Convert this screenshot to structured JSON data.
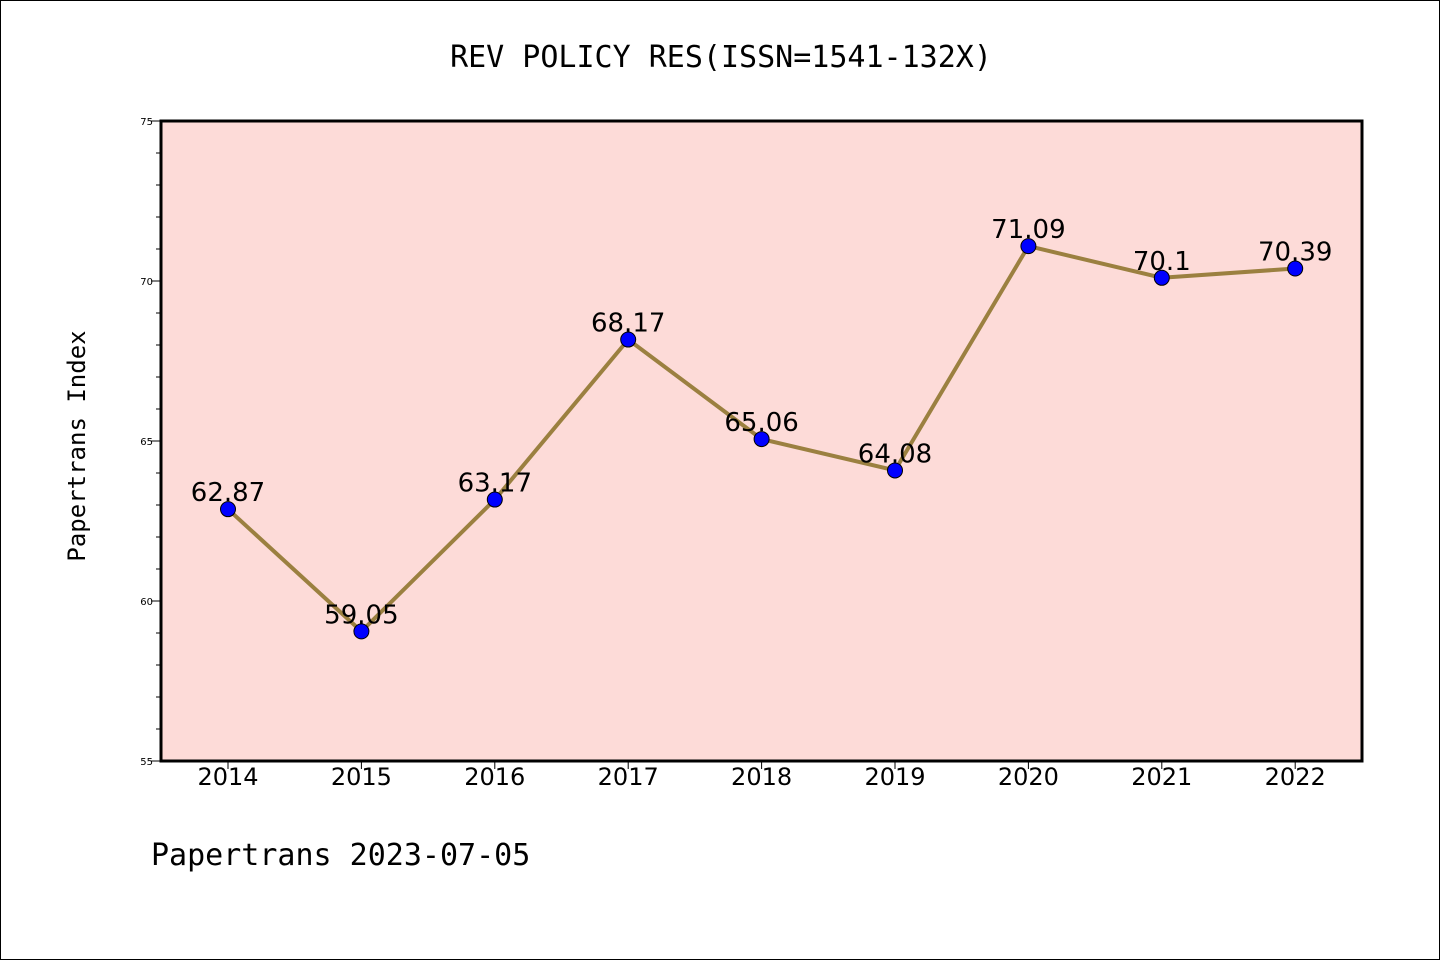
{
  "footer": "Papertrans 2023-07-05",
  "colors": {
    "plot_background": "#fddbd8",
    "line": "#9b8040",
    "marker": "#0000ff",
    "page_background": "#ffffff"
  },
  "chart_data": {
    "type": "line",
    "title": "REV POLICY RES(ISSN=1541-132X)",
    "xlabel": "",
    "ylabel": "Papertrans Index",
    "ylim": [
      55,
      75
    ],
    "yticks": [
      55,
      60,
      65,
      70,
      75
    ],
    "grid": false,
    "x": [
      "2014",
      "2015",
      "2016",
      "2017",
      "2018",
      "2019",
      "2020",
      "2021",
      "2022"
    ],
    "series": [
      {
        "values": [
          62.87,
          59.05,
          63.17,
          68.17,
          65.06,
          64.08,
          71.09,
          70.1,
          70.39
        ],
        "labels": [
          "62.87",
          "59.05",
          "63.17",
          "68.17",
          "65.06",
          "64.08",
          "71.09",
          "70.1",
          "70.39"
        ]
      }
    ]
  }
}
